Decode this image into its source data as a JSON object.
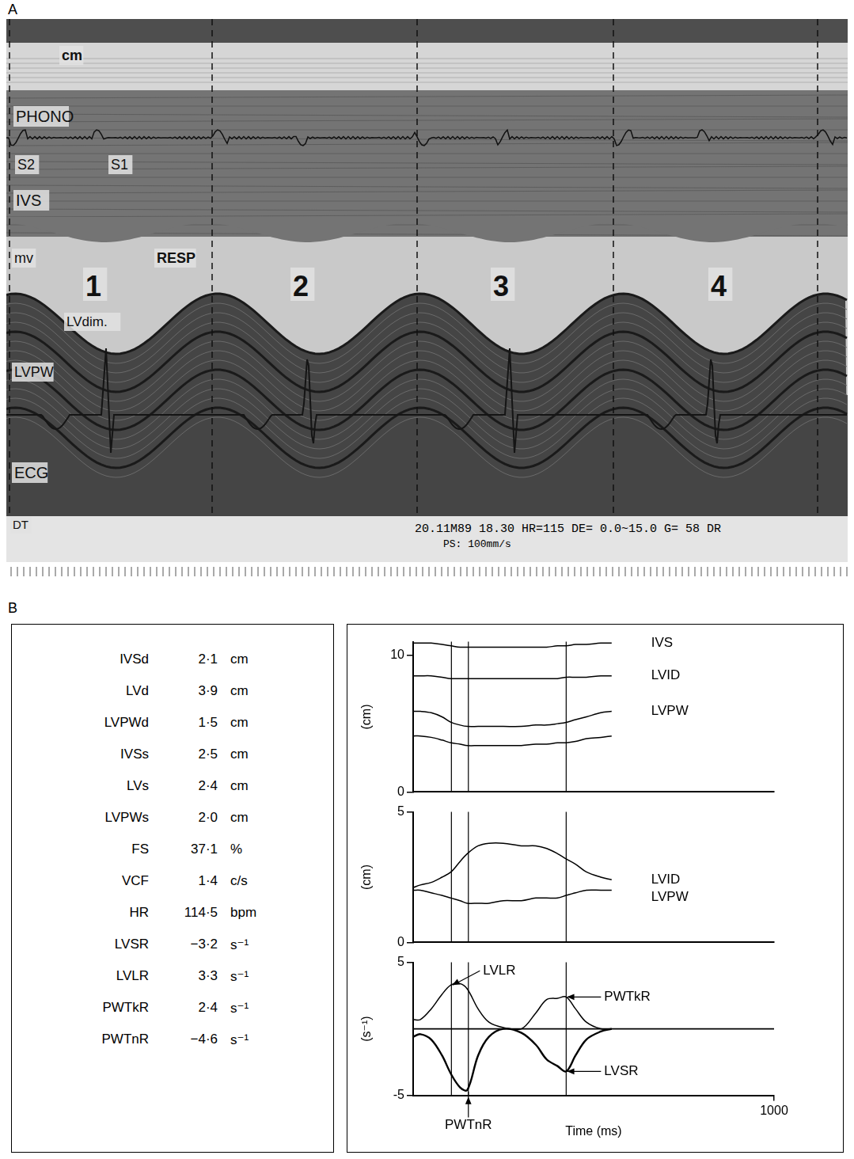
{
  "panel_a": {
    "letter": "A",
    "labels": [
      "cm",
      "PHONO",
      "S2",
      "S1",
      "IVS",
      "mv",
      "RESP",
      "1",
      "LVdim.",
      "2",
      "3",
      "4",
      "LVPW",
      "ECG",
      "DT"
    ],
    "footer": [
      "20.11M89 18.30 HR=115 DE= 0.0~15.0 G= 58 DR",
      "PS: 100mm/s"
    ]
  },
  "panel_b": {
    "letter": "B",
    "table": [
      [
        "IVSd",
        "2·1",
        "cm"
      ],
      [
        "LVd",
        "3·9",
        "cm"
      ],
      [
        "LVPWd",
        "1·5",
        "cm"
      ],
      [
        "IVSs",
        "2·5",
        "cm"
      ],
      [
        "LVs",
        "2·4",
        "cm"
      ],
      [
        "LVPWs",
        "2·0",
        "cm"
      ],
      [
        "FS",
        "37·1",
        "%"
      ],
      [
        "VCF",
        "1·4",
        "c/s"
      ],
      [
        "HR",
        "114·5",
        "bpm"
      ],
      [
        "LVSR",
        "−3·2",
        "s⁻¹"
      ],
      [
        "LVLR",
        "3·3",
        "s⁻¹"
      ],
      [
        "PWTkR",
        "2·4",
        "s⁻¹"
      ],
      [
        "PWTnR",
        "−4·6",
        "s⁻¹"
      ]
    ],
    "markers_ms": [
      106,
      153,
      424
    ]
  },
  "chart_data": [
    {
      "type": "line",
      "y_label": "(cm)",
      "xlim": [
        0,
        1000
      ],
      "ylim": [
        0,
        11
      ],
      "yticks": [
        0,
        10
      ],
      "tick_labels": "y",
      "grid": false,
      "x": [
        0,
        20,
        50,
        80,
        105,
        130,
        150,
        180,
        210,
        250,
        300,
        340,
        370,
        400,
        424,
        450,
        480,
        520,
        550
      ],
      "series": [
        {
          "name": "IVS",
          "color": "#000000",
          "values": [
            10.9,
            10.9,
            10.9,
            10.8,
            10.7,
            10.6,
            10.6,
            10.6,
            10.6,
            10.6,
            10.6,
            10.6,
            10.6,
            10.7,
            10.7,
            10.8,
            10.8,
            10.9,
            10.9
          ]
        },
        {
          "name": "LVID",
          "color": "#000000",
          "values": [
            8.5,
            8.5,
            8.5,
            8.4,
            8.3,
            8.3,
            8.3,
            8.3,
            8.3,
            8.3,
            8.3,
            8.3,
            8.3,
            8.3,
            8.4,
            8.4,
            8.4,
            8.5,
            8.5
          ]
        },
        {
          "name": "LVPW",
          "color": "#000000",
          "values": [
            5.9,
            5.9,
            5.8,
            5.5,
            5.1,
            4.9,
            4.8,
            4.8,
            4.8,
            4.8,
            4.8,
            4.9,
            4.9,
            5.0,
            5.1,
            5.3,
            5.5,
            5.8,
            5.9
          ]
        },
        {
          "name": null,
          "color": "#000000",
          "values": [
            4.1,
            4.1,
            4.0,
            3.8,
            3.6,
            3.5,
            3.4,
            3.4,
            3.4,
            3.4,
            3.4,
            3.5,
            3.5,
            3.6,
            3.6,
            3.7,
            3.9,
            4.0,
            4.1
          ]
        }
      ]
    },
    {
      "type": "line",
      "y_label": "(cm)",
      "xlim": [
        0,
        1000
      ],
      "ylim": [
        0,
        5
      ],
      "yticks": [
        0,
        5
      ],
      "tick_labels": "y",
      "grid": false,
      "x": [
        0,
        20,
        50,
        80,
        105,
        130,
        150,
        180,
        210,
        250,
        300,
        340,
        370,
        400,
        424,
        450,
        480,
        520,
        550
      ],
      "series": [
        {
          "name": "LVID",
          "color": "#000000",
          "values": [
            2.1,
            2.2,
            2.3,
            2.5,
            2.7,
            3.1,
            3.4,
            3.7,
            3.8,
            3.8,
            3.7,
            3.7,
            3.6,
            3.4,
            3.2,
            3.0,
            2.7,
            2.5,
            2.4
          ]
        },
        {
          "name": "LVPW",
          "color": "#000000",
          "values": [
            2.0,
            2.0,
            1.9,
            1.8,
            1.7,
            1.6,
            1.5,
            1.5,
            1.5,
            1.6,
            1.6,
            1.7,
            1.7,
            1.7,
            1.8,
            1.9,
            2.0,
            2.0,
            2.0
          ]
        }
      ]
    },
    {
      "type": "line",
      "y_label": "(s⁻¹)",
      "x_label": "Time (ms)",
      "xlim": [
        0,
        1000
      ],
      "ylim": [
        -5,
        5
      ],
      "xticks": [
        1000
      ],
      "yticks": [
        -5,
        5
      ],
      "grid": false,
      "x": [
        0,
        20,
        50,
        80,
        105,
        130,
        150,
        180,
        210,
        250,
        300,
        340,
        370,
        400,
        424,
        450,
        480,
        520,
        550
      ],
      "series": [
        {
          "name": null,
          "color": "#000000",
          "values": [
            0.7,
            0.7,
            1.5,
            2.6,
            3.3,
            3.4,
            3.0,
            1.5,
            0.5,
            0.1,
            0.0,
            1.2,
            2.2,
            2.3,
            2.4,
            1.5,
            0.5,
            0.0,
            0.0
          ]
        },
        {
          "name": null,
          "color": "#000000",
          "values": [
            -0.6,
            -0.4,
            -0.8,
            -2.0,
            -3.4,
            -4.4,
            -4.6,
            -2.0,
            -0.6,
            0.0,
            -0.3,
            -1.2,
            -2.3,
            -2.8,
            -3.2,
            -2.0,
            -0.8,
            -0.2,
            0.0
          ]
        }
      ],
      "annotations": [
        {
          "text": "LVLR",
          "x": 106,
          "y": 3.3
        },
        {
          "text": "PWTkR",
          "x": 424,
          "y": 2.4
        },
        {
          "text": "LVSR",
          "x": 424,
          "y": -3.2
        },
        {
          "text": "PWTnR",
          "x": 153,
          "y": -4.6
        }
      ]
    }
  ]
}
